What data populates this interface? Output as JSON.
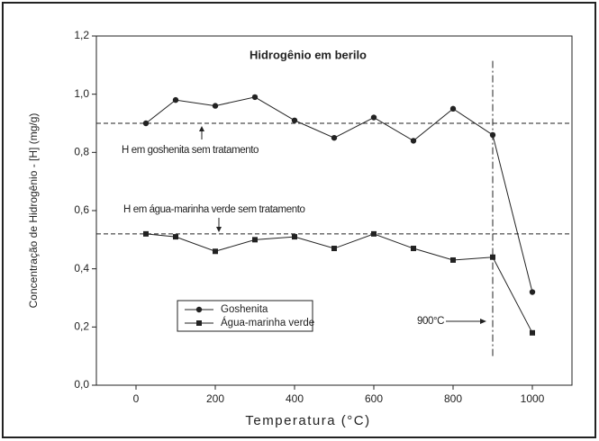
{
  "chart_data": {
    "type": "line",
    "title": "Hidrogênio em berilo",
    "x_label": "Temperatura (°C)",
    "y_label": "Concentração de Hidrogênio - [H] (mg/g)",
    "x": [
      25,
      100,
      200,
      300,
      400,
      500,
      600,
      700,
      800,
      900,
      1000
    ],
    "series": [
      {
        "name": "Goshenita",
        "color": "#222222",
        "marker": "circle",
        "values": [
          0.9,
          0.98,
          0.96,
          0.99,
          0.91,
          0.85,
          0.92,
          0.84,
          0.95,
          0.86,
          0.32
        ]
      },
      {
        "name": "Água-marinha verde",
        "color": "#222222",
        "marker": "square",
        "values": [
          0.52,
          0.51,
          0.46,
          0.5,
          0.51,
          0.47,
          0.52,
          0.47,
          0.43,
          0.44,
          0.18
        ]
      }
    ],
    "xlim": [
      -100,
      1100
    ],
    "xticks": [
      0,
      200,
      400,
      600,
      800,
      1000
    ],
    "ylim": [
      0,
      1.2
    ],
    "yticks": [
      {
        "value": 0,
        "label": "0,0"
      },
      {
        "value": 0.2,
        "label": "0,2"
      },
      {
        "value": 0.4,
        "label": "0,4"
      },
      {
        "value": 0.6,
        "label": "0,6"
      },
      {
        "value": 0.8,
        "label": "0,8"
      },
      {
        "value": 1.0,
        "label": "1,0"
      },
      {
        "value": 1.2,
        "label": "1,2"
      }
    ],
    "hlines": [
      0.9,
      0.52
    ],
    "vline": {
      "x": 900,
      "y": [
        0.1,
        1.12
      ]
    },
    "annotations": [
      "H em goshenita sem tratamento",
      "H em água-marinha verde sem tratamento",
      "900°C"
    ],
    "legend": "lower-left"
  }
}
